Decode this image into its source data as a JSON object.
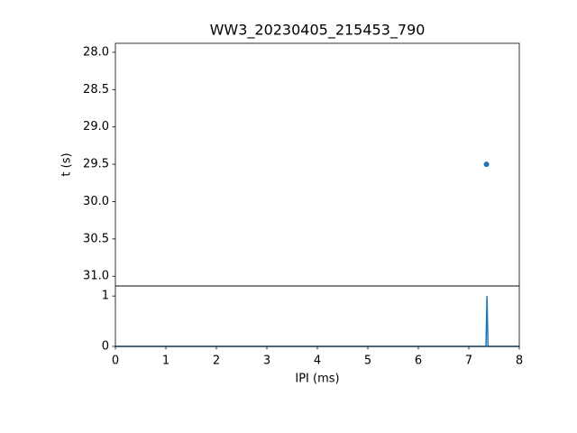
{
  "chart_data": [
    {
      "type": "scatter",
      "title": "WW3_20230405_215453_790",
      "y_label": "t (s)",
      "x": [
        7.35
      ],
      "values": [
        29.5
      ],
      "color": "#1f77b4",
      "xlim": [
        0,
        8
      ],
      "ylim": [
        31.13,
        27.88
      ],
      "yticks": [
        {
          "value": 28,
          "label": "28.0"
        },
        28.5,
        {
          "value": 29,
          "label": "29.0"
        },
        29.5,
        {
          "value": 30,
          "label": "30.0"
        },
        30.5,
        {
          "value": 31,
          "label": "31.0"
        }
      ]
    },
    {
      "type": "line",
      "x_label": "IPI (ms)",
      "x": [
        0,
        7.34,
        7.36,
        7.38,
        8
      ],
      "values": [
        0,
        0,
        1,
        0,
        0
      ],
      "color": "#1f77b4",
      "xlim": [
        0,
        8
      ],
      "ylim": [
        0,
        1.2
      ],
      "xticks": [
        0,
        1,
        2,
        3,
        4,
        5,
        6,
        7,
        8
      ],
      "yticks": [
        0,
        1
      ]
    }
  ]
}
